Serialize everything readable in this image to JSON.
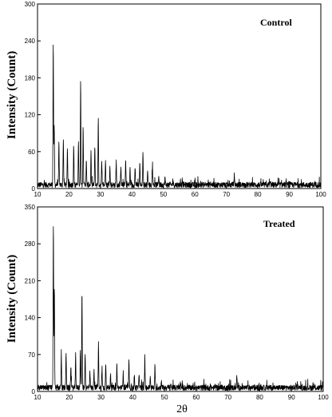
{
  "x_axis_label": "2θ",
  "chart_data": [
    {
      "type": "line",
      "title": "Control",
      "ylabel": "Intensity (Count)",
      "xlabel": "",
      "xlim": [
        10,
        100
      ],
      "ylim": [
        0,
        300
      ],
      "x_ticks": [
        10,
        20,
        30,
        40,
        50,
        60,
        70,
        80,
        90,
        100
      ],
      "y_ticks": [
        0,
        60,
        120,
        180,
        240,
        300
      ],
      "baseline": 6,
      "series": [
        {
          "peaks": [
            {
              "x": 15.0,
              "y": 240
            },
            {
              "x": 15.3,
              "y": 100
            },
            {
              "x": 16.8,
              "y": 75
            },
            {
              "x": 18.2,
              "y": 82
            },
            {
              "x": 19.5,
              "y": 65
            },
            {
              "x": 21.5,
              "y": 70
            },
            {
              "x": 23.0,
              "y": 75
            },
            {
              "x": 23.7,
              "y": 175
            },
            {
              "x": 24.5,
              "y": 100
            },
            {
              "x": 25.5,
              "y": 45
            },
            {
              "x": 27.0,
              "y": 58
            },
            {
              "x": 28.2,
              "y": 68
            },
            {
              "x": 29.3,
              "y": 115
            },
            {
              "x": 30.4,
              "y": 42
            },
            {
              "x": 31.6,
              "y": 50
            },
            {
              "x": 33.0,
              "y": 35
            },
            {
              "x": 35.0,
              "y": 45
            },
            {
              "x": 36.5,
              "y": 38
            },
            {
              "x": 38.0,
              "y": 45
            },
            {
              "x": 39.4,
              "y": 32
            },
            {
              "x": 41.0,
              "y": 35
            },
            {
              "x": 42.5,
              "y": 42
            },
            {
              "x": 43.5,
              "y": 60
            },
            {
              "x": 45.0,
              "y": 30
            },
            {
              "x": 46.5,
              "y": 38
            },
            {
              "x": 48.5,
              "y": 22
            },
            {
              "x": 50.5,
              "y": 18
            },
            {
              "x": 53.0,
              "y": 15
            },
            {
              "x": 56.0,
              "y": 14
            },
            {
              "x": 60.0,
              "y": 12
            },
            {
              "x": 65.0,
              "y": 11
            },
            {
              "x": 72.5,
              "y": 22
            },
            {
              "x": 78.0,
              "y": 11
            },
            {
              "x": 84.0,
              "y": 10
            },
            {
              "x": 90.0,
              "y": 10
            }
          ]
        }
      ]
    },
    {
      "type": "line",
      "title": "Treated",
      "ylabel": "Intensity (Count)",
      "xlabel": "2θ",
      "xlim": [
        10,
        100
      ],
      "ylim": [
        0,
        350
      ],
      "x_ticks": [
        10,
        20,
        30,
        40,
        50,
        60,
        70,
        80,
        90,
        100
      ],
      "y_ticks": [
        0,
        70,
        140,
        210,
        280,
        350
      ],
      "baseline": 7,
      "series": [
        {
          "peaks": [
            {
              "x": 15.0,
              "y": 320
            },
            {
              "x": 15.3,
              "y": 195
            },
            {
              "x": 17.5,
              "y": 72
            },
            {
              "x": 19.0,
              "y": 75
            },
            {
              "x": 20.5,
              "y": 50
            },
            {
              "x": 22.0,
              "y": 70
            },
            {
              "x": 23.5,
              "y": 80
            },
            {
              "x": 24.0,
              "y": 185
            },
            {
              "x": 25.0,
              "y": 75
            },
            {
              "x": 26.5,
              "y": 40
            },
            {
              "x": 27.8,
              "y": 45
            },
            {
              "x": 29.2,
              "y": 90
            },
            {
              "x": 30.3,
              "y": 40
            },
            {
              "x": 31.5,
              "y": 55
            },
            {
              "x": 33.0,
              "y": 35
            },
            {
              "x": 35.0,
              "y": 50
            },
            {
              "x": 37.0,
              "y": 35
            },
            {
              "x": 38.8,
              "y": 55
            },
            {
              "x": 40.5,
              "y": 30
            },
            {
              "x": 42.0,
              "y": 35
            },
            {
              "x": 43.8,
              "y": 60
            },
            {
              "x": 45.5,
              "y": 25
            },
            {
              "x": 47.0,
              "y": 45
            },
            {
              "x": 49.0,
              "y": 20
            },
            {
              "x": 52.0,
              "y": 16
            },
            {
              "x": 55.0,
              "y": 14
            },
            {
              "x": 60.0,
              "y": 12
            },
            {
              "x": 66.0,
              "y": 11
            },
            {
              "x": 72.8,
              "y": 28
            },
            {
              "x": 78.0,
              "y": 11
            },
            {
              "x": 85.0,
              "y": 11
            },
            {
              "x": 92.0,
              "y": 10
            }
          ]
        }
      ]
    }
  ]
}
